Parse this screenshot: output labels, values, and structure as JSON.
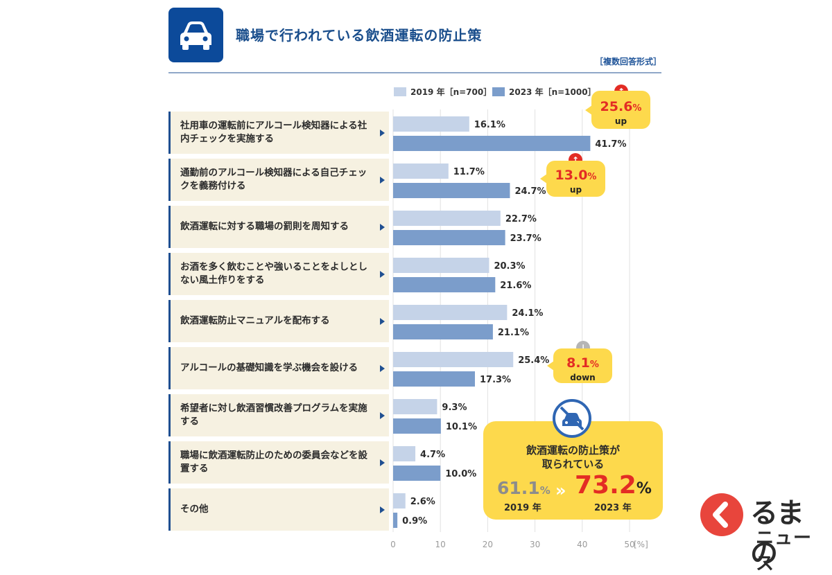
{
  "header": {
    "title": "職場で行われている飲酒運転の防止策",
    "note": "［複数回答形式］",
    "icon": "car-icon"
  },
  "legend": [
    {
      "label": "2019 年［n=700］",
      "color": "#c5d3e8"
    },
    {
      "label": "2023 年［n=1000］",
      "color": "#7b9dcb"
    }
  ],
  "chart_data": {
    "type": "bar",
    "orientation": "horizontal",
    "title": "職場で行われている飲酒運転の防止策",
    "unit_label": "[%]",
    "xlim": [
      0,
      50
    ],
    "ticks": [
      0,
      10,
      20,
      30,
      40,
      50
    ],
    "tick_labels": [
      "0",
      "10",
      "20",
      "30",
      "40",
      "50"
    ],
    "categories": [
      "社用車の運転前にアルコール検知器による社内チェックを実施する",
      "通勤前のアルコール検知器による自己チェックを義務付ける",
      "飲酒運転に対する職場の罰則を周知する",
      "お酒を多く飲むことや強いることをよしとしない風土作りをする",
      "飲酒運転防止マニュアルを配布する",
      "アルコールの基礎知識を学ぶ機会を設ける",
      "希望者に対し飲酒習慣改善プログラムを実施する",
      "職場に飲酒運転防止のための委員会などを設置する",
      "その他"
    ],
    "series": [
      {
        "name": "2019 年［n=700］",
        "color": "#c5d3e8",
        "values": [
          16.1,
          11.7,
          22.7,
          20.3,
          24.1,
          25.4,
          9.3,
          4.7,
          2.6
        ],
        "labels": [
          "16.1%",
          "11.7%",
          "22.7%",
          "20.3%",
          "24.1%",
          "25.4%",
          "9.3%",
          "4.7%",
          "2.6%"
        ]
      },
      {
        "name": "2023 年［n=1000］",
        "color": "#7b9dcb",
        "values": [
          41.7,
          24.7,
          23.7,
          21.6,
          21.1,
          17.3,
          10.1,
          10.0,
          0.9
        ],
        "labels": [
          "41.7%",
          "24.7%",
          "23.7%",
          "21.6%",
          "21.1%",
          "17.3%",
          "10.1%",
          "10.0%",
          "0.9%"
        ]
      }
    ]
  },
  "callouts": [
    {
      "value": "25.6",
      "unit": "%",
      "direction": "up",
      "word": "up",
      "arrow": "↑",
      "color": "#e32c24"
    },
    {
      "value": "13.0",
      "unit": "%",
      "direction": "up",
      "word": "up",
      "arrow": "↑",
      "color": "#e32c24"
    },
    {
      "value": "8.1",
      "unit": "%",
      "direction": "down",
      "word": "down",
      "arrow": "↓",
      "color": "#b5b5b5"
    }
  ],
  "summary": {
    "title_line1": "飲酒運転の防止策が",
    "title_line2": "取られている",
    "old_value": "61.1",
    "old_unit": "%",
    "old_year": "2019 年",
    "new_value": "73.2",
    "new_unit": "%",
    "new_year": "2023 年",
    "chevrons": "»",
    "icon": "no-drunk-driving-icon"
  },
  "logo": {
    "line1": "るまの",
    "line2": "ニュース",
    "icon": "kuruma-logo-icon"
  }
}
